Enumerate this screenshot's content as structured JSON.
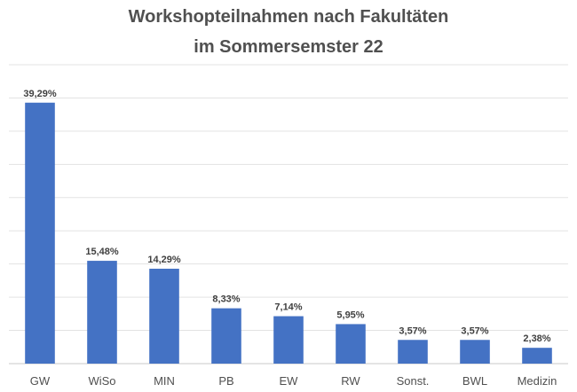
{
  "chart_data": {
    "type": "bar",
    "title_lines": [
      "Workshopteilnahmen nach Fakultäten",
      "im Sommersemster 22"
    ],
    "categories": [
      "GW",
      "WiSo",
      "MIN",
      "PB",
      "EW",
      "RW",
      "Sonst.",
      "BWL",
      "Medizin"
    ],
    "values": [
      39.29,
      15.48,
      14.29,
      8.33,
      7.14,
      5.95,
      3.57,
      3.57,
      2.38
    ],
    "value_labels": [
      "39,29%",
      "15,48%",
      "14,29%",
      "8,33%",
      "7,14%",
      "5,95%",
      "3,57%",
      "3,57%",
      "2,38%"
    ],
    "ylim": [
      0,
      45
    ],
    "grid": true,
    "legend": "none",
    "bar_color": "#4472C4"
  }
}
